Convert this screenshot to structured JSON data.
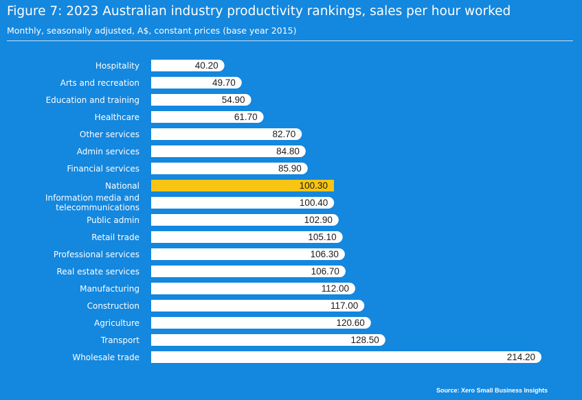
{
  "header": {
    "title": "Figure 7: 2023 Australian industry productivity rankings, sales per hour worked",
    "subtitle": "Monthly, seasonally adjusted, A$, constant prices (base year 2015)"
  },
  "footer": {
    "source": "Source: Xero Small Business Insights"
  },
  "colors": {
    "background": "#1487de",
    "bar": "#ffffff",
    "highlight_bar": "#f8c513",
    "label_text": "#ffffff",
    "value_text": "#1a1a1a"
  },
  "chart_data": {
    "type": "bar",
    "orientation": "horizontal",
    "title": "Figure 7: 2023 Australian industry productivity rankings, sales per hour worked",
    "subtitle": "Monthly, seasonally adjusted, A$, constant prices (base year 2015)",
    "categories": [
      "Hospitality",
      "Arts and recreation",
      "Education and training",
      "Healthcare",
      "Other services",
      "Admin services",
      "Financial services",
      "National",
      "Information media and telecommunications",
      "Public admin",
      "Retail trade",
      "Professional services",
      "Real estate services",
      "Manufacturing",
      "Construction",
      "Agriculture",
      "Transport",
      "Wholesale trade"
    ],
    "category_lines": [
      [
        "Hospitality"
      ],
      [
        "Arts and recreation"
      ],
      [
        "Education and training"
      ],
      [
        "Healthcare"
      ],
      [
        "Other services"
      ],
      [
        "Admin services"
      ],
      [
        "Financial services"
      ],
      [
        "National"
      ],
      [
        "Information media and",
        "telecommunications"
      ],
      [
        "Public admin"
      ],
      [
        "Retail trade"
      ],
      [
        "Professional services"
      ],
      [
        "Real estate services"
      ],
      [
        "Manufacturing"
      ],
      [
        "Construction"
      ],
      [
        "Agriculture"
      ],
      [
        "Transport"
      ],
      [
        "Wholesale trade"
      ]
    ],
    "values": [
      40.2,
      49.7,
      54.9,
      61.7,
      82.7,
      84.8,
      85.9,
      100.3,
      100.4,
      102.9,
      105.1,
      106.3,
      106.7,
      112.0,
      117.0,
      120.6,
      128.5,
      214.2
    ],
    "value_labels": [
      "40.20",
      "49.70",
      "54.90",
      "61.70",
      "82.70",
      "84.80",
      "85.90",
      "100.30",
      "100.40",
      "102.90",
      "105.10",
      "106.30",
      "106.70",
      "112.00",
      "117.00",
      "120.60",
      "128.50",
      "214.20"
    ],
    "highlight_category": "National",
    "xlim": [
      0,
      214.2
    ],
    "grid": false,
    "legend": "none"
  }
}
